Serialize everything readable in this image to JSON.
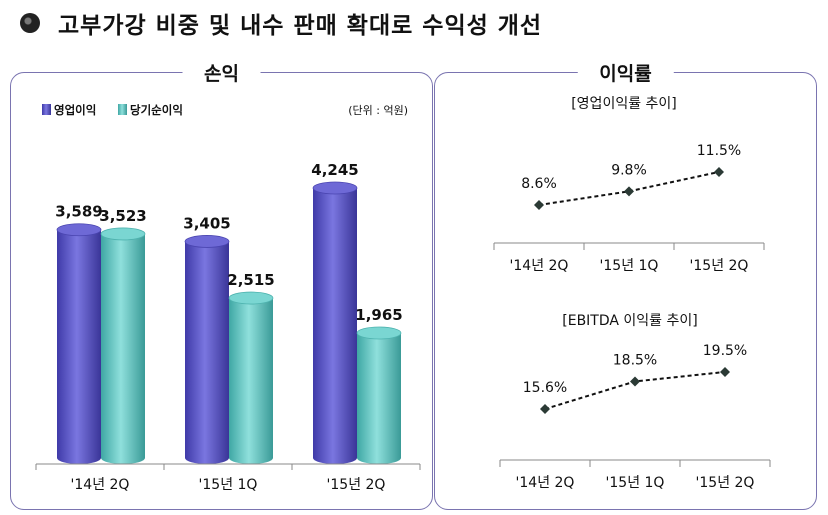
{
  "page": {
    "title": "고부가강 비중 및 내수 판매 확대로 수익성 개선"
  },
  "left_panel": {
    "title": "손익"
  },
  "right_panel": {
    "title": "이익률"
  },
  "chart_data": [
    {
      "type": "bar",
      "title": "손익",
      "unit_label": "(단위 : 억원)",
      "categories": [
        "'14년 2Q",
        "'15년 1Q",
        "'15년 2Q"
      ],
      "series": [
        {
          "name": "영업이익",
          "values": [
            3589,
            3405,
            4245
          ],
          "labels": [
            "3,589",
            "3,405",
            "4,245"
          ],
          "color": "#5a55c8"
        },
        {
          "name": "당기순이익",
          "values": [
            3523,
            2515,
            1965
          ],
          "labels": [
            "3,523",
            "2,515",
            "1,965"
          ],
          "color": "#5cc8c4"
        }
      ],
      "legend": "top-left"
    },
    {
      "type": "line",
      "title": "[영업이익률 추이]",
      "categories": [
        "'14년 2Q",
        "'15년 1Q",
        "'15년 2Q"
      ],
      "values": [
        8.6,
        9.8,
        11.5
      ],
      "labels": [
        "8.6%",
        "9.8%",
        "11.5%"
      ]
    },
    {
      "type": "line",
      "title": "[EBITDA 이익률 추이]",
      "categories": [
        "'14년 2Q",
        "'15년 1Q",
        "'15년 2Q"
      ],
      "values": [
        15.6,
        18.5,
        19.5
      ],
      "labels": [
        "15.6%",
        "18.5%",
        "19.5%"
      ]
    }
  ]
}
